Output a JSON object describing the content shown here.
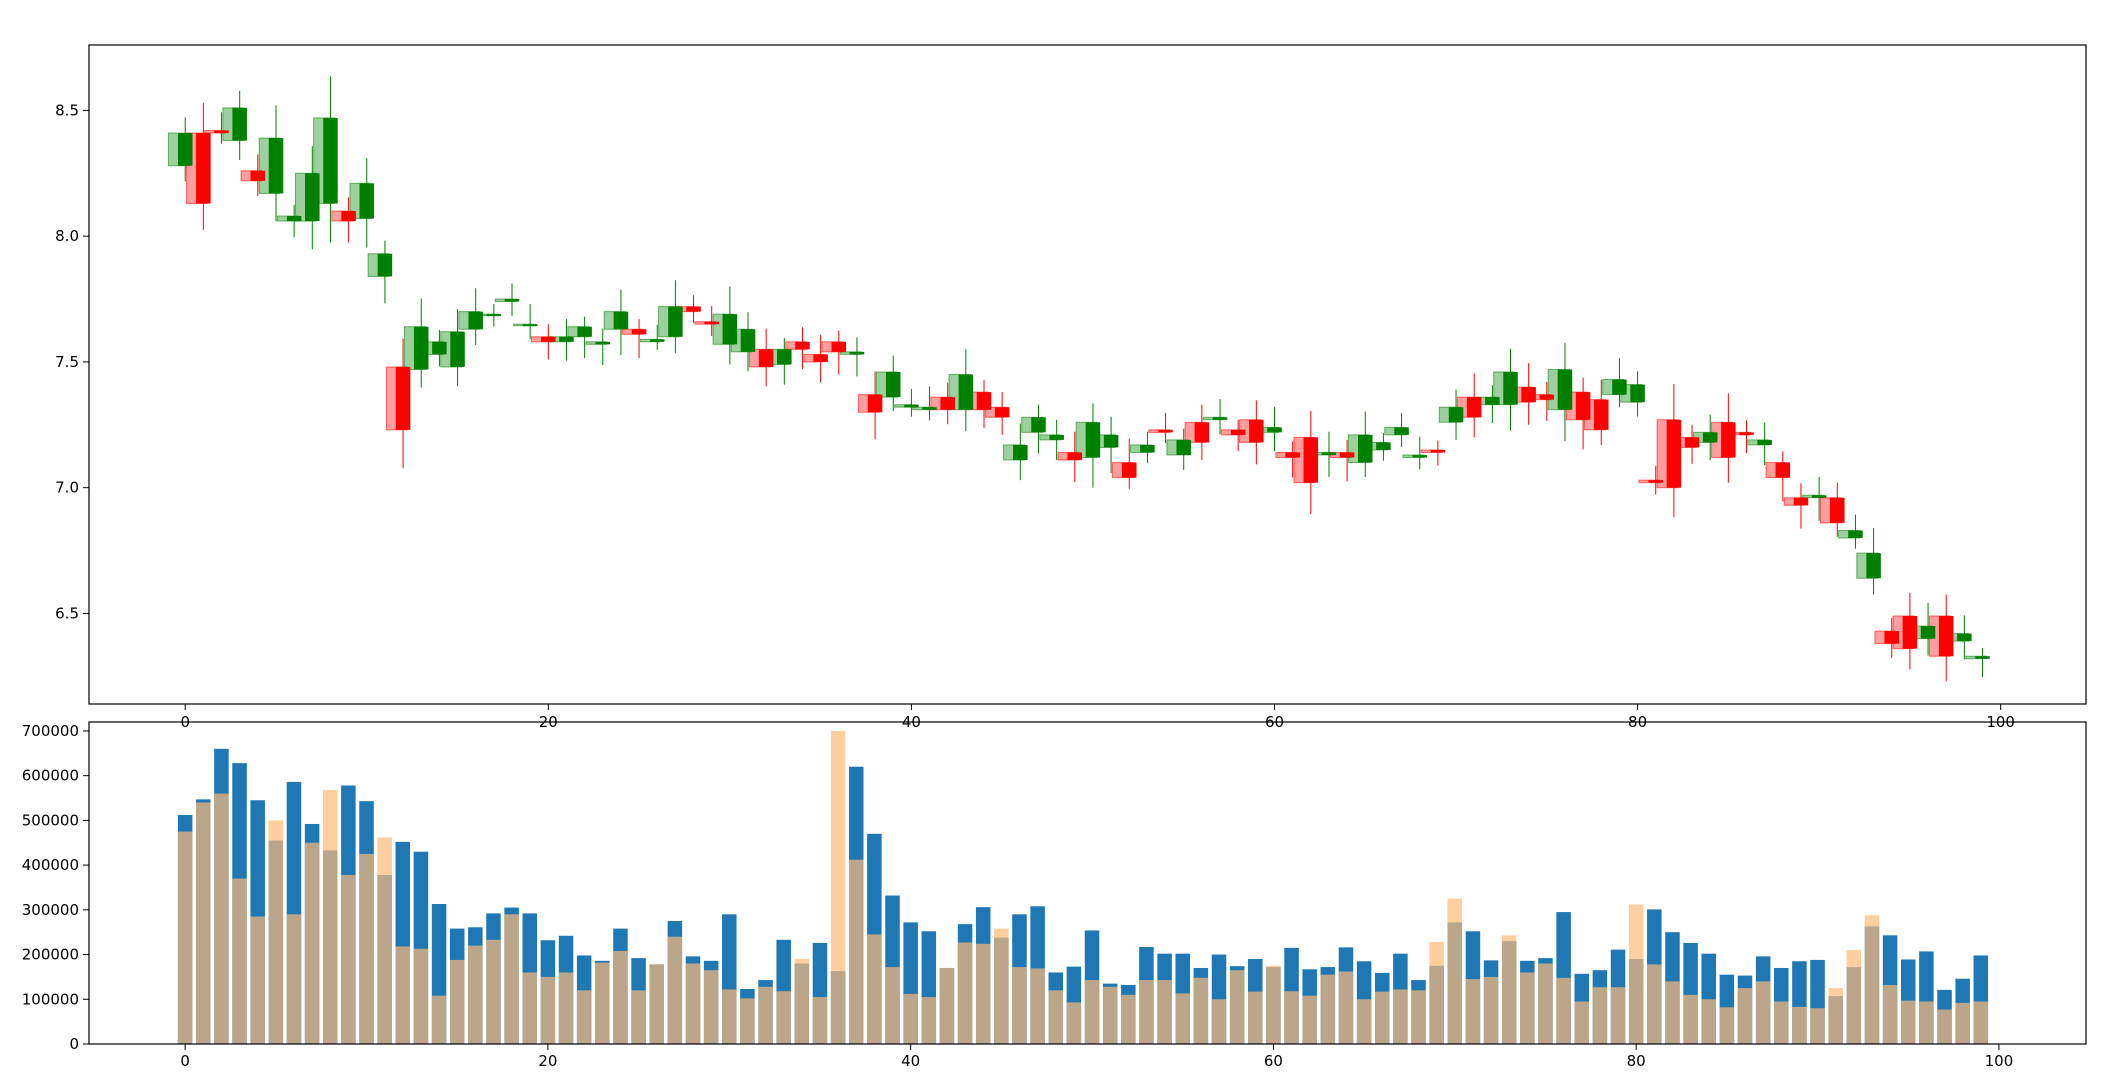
{
  "chart_data": [
    {
      "type": "candlestick",
      "xlim": [
        -5.3,
        104.7
      ],
      "ylim": [
        6.14,
        8.76
      ],
      "xticks": [
        0,
        20,
        40,
        60,
        80,
        100
      ],
      "yticks": [
        6.5,
        7.0,
        7.5,
        8.0,
        8.5
      ],
      "x": [
        0,
        1,
        2,
        3,
        4,
        5,
        6,
        7,
        8,
        9,
        10,
        11,
        12,
        13,
        14,
        15,
        16,
        17,
        18,
        19,
        20,
        21,
        22,
        23,
        24,
        25,
        26,
        27,
        28,
        29,
        30,
        31,
        32,
        33,
        34,
        35,
        36,
        37,
        38,
        39,
        40,
        41,
        42,
        43,
        44,
        45,
        46,
        47,
        48,
        49,
        50,
        51,
        52,
        53,
        54,
        55,
        56,
        57,
        58,
        59,
        60,
        61,
        62,
        63,
        64,
        65,
        66,
        67,
        68,
        69,
        70,
        71,
        72,
        73,
        74,
        75,
        76,
        77,
        78,
        79,
        80,
        81,
        82,
        83,
        84,
        85,
        86,
        87,
        88,
        89,
        90,
        91,
        92,
        93,
        94,
        95,
        96,
        97,
        98,
        99
      ],
      "series": [
        {
          "colors": {
            "up": "#008000",
            "down": "#ff0000"
          },
          "open": [
            8.28,
            8.41,
            8.42,
            8.38,
            8.26,
            8.17,
            8.06,
            8.06,
            8.13,
            8.1,
            8.07,
            7.84,
            7.48,
            7.47,
            7.53,
            7.48,
            7.63,
            7.69,
            7.74,
            7.65,
            7.6,
            7.58,
            7.6,
            7.57,
            7.63,
            7.63,
            7.58,
            7.6,
            7.72,
            7.66,
            7.57,
            7.54,
            7.55,
            7.49,
            7.58,
            7.53,
            7.58,
            7.53,
            7.37,
            7.36,
            7.32,
            7.31,
            7.36,
            7.31,
            7.38,
            7.32,
            7.11,
            7.22,
            7.19,
            7.14,
            7.12,
            7.16,
            7.1,
            7.14,
            7.23,
            7.13,
            7.26,
            7.27,
            7.23,
            7.27,
            7.22,
            7.14,
            7.2,
            7.13,
            7.14,
            7.1,
            7.15,
            7.21,
            7.12,
            7.15,
            7.26,
            7.36,
            7.33,
            7.33,
            7.4,
            7.37,
            7.31,
            7.38,
            7.35,
            7.37,
            7.34,
            7.03,
            7.27,
            7.2,
            7.18,
            7.26,
            7.22,
            7.17,
            7.1,
            6.96,
            6.96,
            6.96,
            6.8,
            6.64,
            6.43,
            6.49,
            6.4,
            6.49,
            6.39,
            6.32
          ],
          "close": [
            8.41,
            8.13,
            8.41,
            8.51,
            8.22,
            8.39,
            8.08,
            8.25,
            8.47,
            8.06,
            8.21,
            7.93,
            7.23,
            7.64,
            7.58,
            7.62,
            7.7,
            7.69,
            7.75,
            7.65,
            7.58,
            7.6,
            7.64,
            7.58,
            7.7,
            7.61,
            7.59,
            7.72,
            7.7,
            7.65,
            7.69,
            7.63,
            7.48,
            7.55,
            7.55,
            7.5,
            7.54,
            7.54,
            7.3,
            7.46,
            7.33,
            7.32,
            7.31,
            7.45,
            7.31,
            7.28,
            7.17,
            7.28,
            7.21,
            7.11,
            7.26,
            7.21,
            7.04,
            7.17,
            7.22,
            7.19,
            7.18,
            7.28,
            7.21,
            7.18,
            7.24,
            7.12,
            7.02,
            7.14,
            7.12,
            7.21,
            7.18,
            7.24,
            7.13,
            7.14,
            7.32,
            7.28,
            7.36,
            7.46,
            7.34,
            7.35,
            7.47,
            7.27,
            7.23,
            7.43,
            7.41,
            7.02,
            7.0,
            7.16,
            7.22,
            7.12,
            7.21,
            7.19,
            7.04,
            6.93,
            6.97,
            6.86,
            6.83,
            6.74,
            6.38,
            6.36,
            6.45,
            6.33,
            6.42,
            6.33
          ]
        }
      ]
    },
    {
      "type": "bar",
      "xlim": [
        -5.3,
        104.8
      ],
      "ylim": [
        0,
        720000
      ],
      "xticks": [
        0,
        20,
        40,
        60,
        80,
        100
      ],
      "yticks": [
        0,
        100000,
        200000,
        300000,
        400000,
        500000,
        600000,
        700000
      ],
      "ytick_labels": [
        "0",
        "100000",
        "200000",
        "300000",
        "400000",
        "500000",
        "600000",
        "700000"
      ],
      "series": [
        {
          "color": "#1f77b4",
          "values": [
            512000,
            547000,
            660000,
            628000,
            545000,
            455000,
            586000,
            492000,
            433000,
            578000,
            543000,
            378000,
            452000,
            430000,
            313000,
            258000,
            261000,
            292000,
            305000,
            292000,
            232000,
            242000,
            198000,
            186000,
            258000,
            192000,
            178000,
            275000,
            196000,
            186000,
            290000,
            123000,
            143000,
            233000,
            180000,
            226000,
            163000,
            620000,
            470000,
            332000,
            272000,
            252000,
            170000,
            268000,
            306000,
            238000,
            290000,
            308000,
            160000,
            173000,
            254000,
            135000,
            132000,
            217000,
            202000,
            202000,
            170000,
            200000,
            174000,
            190000,
            172000,
            215000,
            167000,
            172000,
            216000,
            185000,
            159000,
            202000,
            143000,
            175000,
            272000,
            252000,
            187000,
            230000,
            186000,
            192000,
            295000,
            157000,
            165000,
            211000,
            190000,
            301000,
            250000,
            226000,
            202000,
            155000,
            153000,
            196000,
            170000,
            185000,
            188000,
            107000,
            172000,
            263000,
            243000,
            189000,
            207000,
            121000,
            146000,
            198000
          ],
          "z": "back"
        },
        {
          "color": "#ffbb78",
          "values": [
            475000,
            540000,
            560000,
            370000,
            285000,
            500000,
            290000,
            450000,
            568000,
            378000,
            425000,
            462000,
            218000,
            213000,
            108000,
            188000,
            220000,
            233000,
            290000,
            160000,
            150000,
            160000,
            120000,
            182000,
            208000,
            120000,
            178000,
            240000,
            180000,
            165000,
            122000,
            102000,
            128000,
            118000,
            190000,
            105000,
            700000,
            412000,
            245000,
            172000,
            112000,
            105000,
            170000,
            227000,
            224000,
            258000,
            172000,
            169000,
            120000,
            93000,
            143000,
            128000,
            110000,
            143000,
            143000,
            113000,
            148000,
            100000,
            165000,
            117000,
            175000,
            118000,
            108000,
            155000,
            162000,
            100000,
            117000,
            122000,
            120000,
            228000,
            325000,
            145000,
            150000,
            243000,
            160000,
            180000,
            148000,
            95000,
            127000,
            127000,
            312000,
            178000,
            140000,
            110000,
            100000,
            82000,
            125000,
            140000,
            95000,
            83000,
            80000,
            125000,
            210000,
            288000,
            132000,
            97000,
            95000,
            77000,
            92000,
            95000
          ],
          "opacity": 0.7,
          "z": "front"
        }
      ]
    }
  ]
}
